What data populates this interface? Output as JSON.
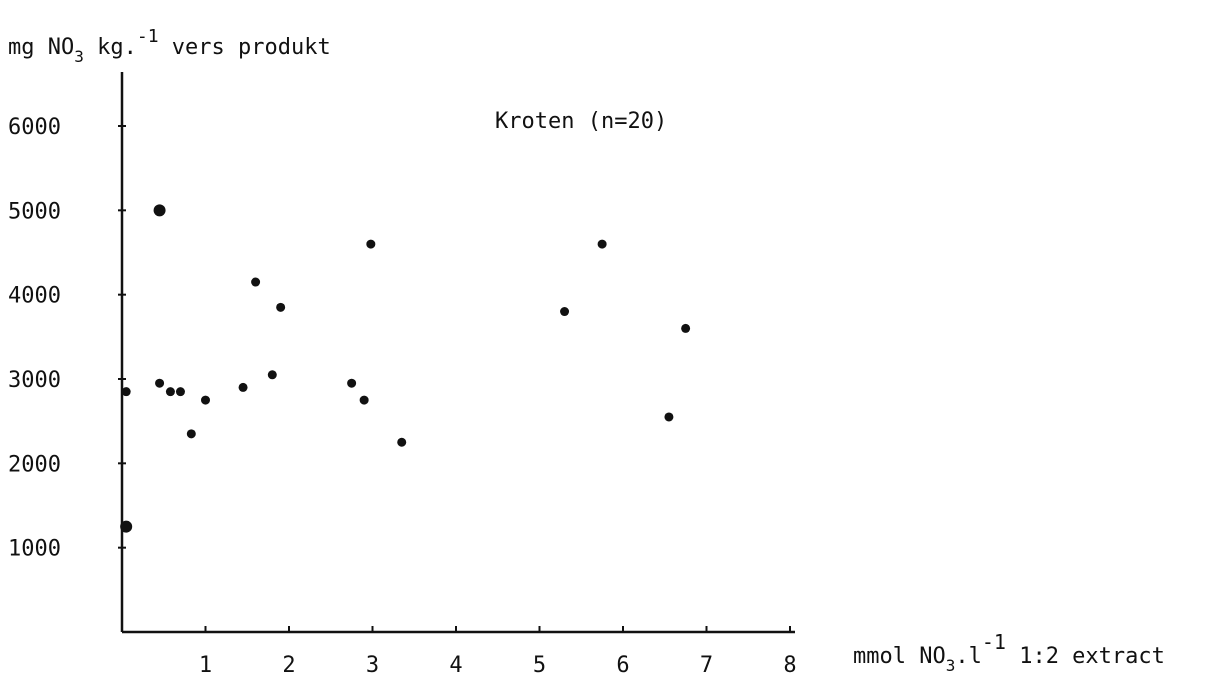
{
  "chart_data": {
    "type": "scatter",
    "ylabel": {
      "pre": "mg NO",
      "sub": "3",
      "mid": " kg.",
      "sup": "-1",
      "post": " vers produkt"
    },
    "xlabel": {
      "pre": "mmol NO",
      "sub": "3",
      "mid": ".l",
      "sup": "-1",
      "post": " 1:2 extract"
    },
    "annotation": "Kroten (n=20)",
    "xlim": [
      0,
      8
    ],
    "ylim": [
      0,
      6000
    ],
    "xticks": [
      1,
      2,
      3,
      4,
      5,
      6,
      7,
      8
    ],
    "yticks": [
      1000,
      2000,
      3000,
      4000,
      5000,
      6000
    ],
    "grid": false,
    "legend": "none",
    "point_color": "#111111",
    "points": [
      {
        "x": 0.05,
        "y": 2850
      },
      {
        "x": 0.05,
        "y": 1250
      },
      {
        "x": 0.45,
        "y": 5000
      },
      {
        "x": 0.45,
        "y": 2950
      },
      {
        "x": 0.58,
        "y": 2850
      },
      {
        "x": 0.7,
        "y": 2850
      },
      {
        "x": 0.83,
        "y": 2350
      },
      {
        "x": 1.0,
        "y": 2750
      },
      {
        "x": 1.45,
        "y": 2900
      },
      {
        "x": 1.6,
        "y": 4150
      },
      {
        "x": 1.8,
        "y": 3050
      },
      {
        "x": 1.9,
        "y": 3850
      },
      {
        "x": 2.75,
        "y": 2950
      },
      {
        "x": 2.9,
        "y": 2750
      },
      {
        "x": 2.98,
        "y": 4600
      },
      {
        "x": 3.35,
        "y": 2250
      },
      {
        "x": 5.3,
        "y": 3800
      },
      {
        "x": 5.75,
        "y": 4600
      },
      {
        "x": 6.55,
        "y": 2550
      },
      {
        "x": 6.75,
        "y": 3600
      }
    ]
  }
}
